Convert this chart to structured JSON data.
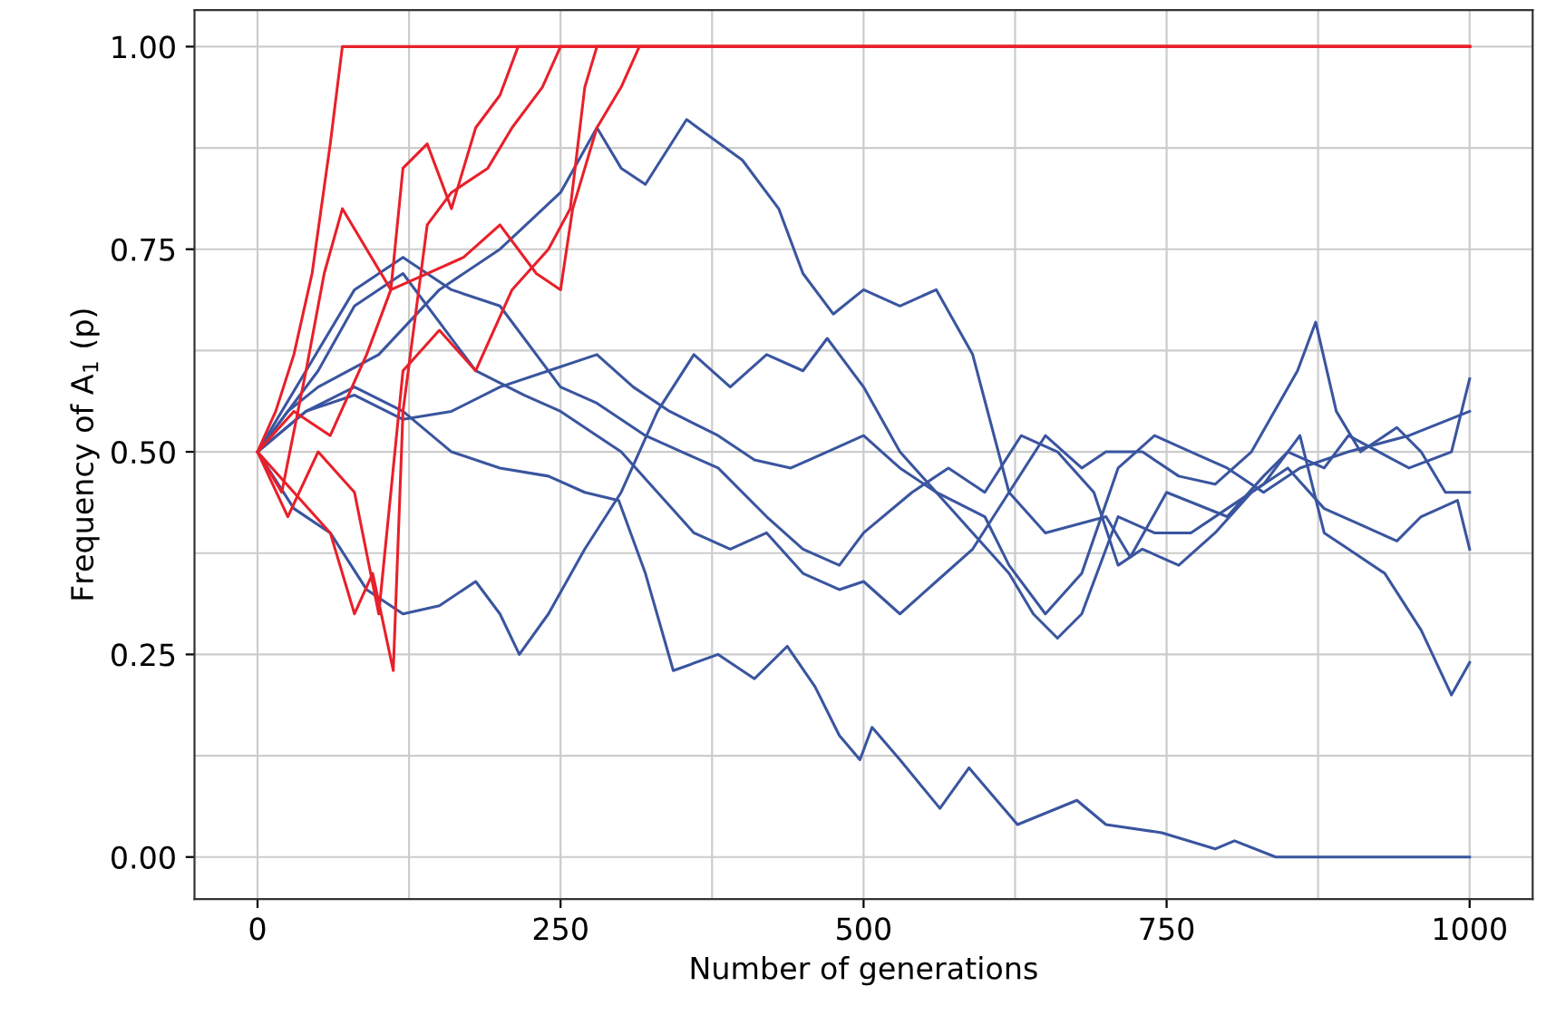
{
  "chart_data": {
    "type": "line",
    "xlabel": "Number of generations",
    "ylabel": "Frequency of A$_{1}$ (p)",
    "xlim": [
      -52,
      1052
    ],
    "ylim": [
      -0.052,
      1.045
    ],
    "xticks": [
      0,
      {
        "value": 125,
        "label": null
      },
      250,
      {
        "value": 375,
        "label": null
      },
      500,
      {
        "value": 625,
        "label": null
      },
      750,
      {
        "value": 875,
        "label": null
      },
      1000
    ],
    "yticks": [
      {
        "value": 0,
        "label": "0.00"
      },
      {
        "value": 0.125,
        "label": null
      },
      {
        "value": 0.25,
        "label": "0.25"
      },
      {
        "value": 0.375,
        "label": null
      },
      {
        "value": 0.5,
        "label": "0.50"
      },
      {
        "value": 0.625,
        "label": null
      },
      {
        "value": 0.75,
        "label": "0.75"
      },
      {
        "value": 0.875,
        "label": null
      },
      {
        "value": 1,
        "label": "1.00"
      }
    ],
    "grid": true,
    "marker": "none",
    "line_style": "solid",
    "series": [
      {
        "color": "#3a559f",
        "x": [
          0,
          25,
          50,
          100,
          150,
          200,
          250,
          280,
          300,
          320,
          354,
          400,
          430,
          450,
          475,
          500,
          530,
          560,
          590,
          620,
          650,
          700,
          720,
          750,
          800,
          830,
          850,
          880,
          900,
          950,
          985,
          1000
        ],
        "values": [
          0.5,
          0.55,
          0.58,
          0.62,
          0.7,
          0.75,
          0.82,
          0.9,
          0.85,
          0.83,
          0.91,
          0.86,
          0.8,
          0.72,
          0.67,
          0.7,
          0.68,
          0.7,
          0.62,
          0.45,
          0.4,
          0.42,
          0.37,
          0.45,
          0.42,
          0.47,
          0.5,
          0.48,
          0.52,
          0.48,
          0.5,
          0.59
        ]
      },
      {
        "color": "#3a559f",
        "x": [
          0,
          40,
          80,
          120,
          160,
          200,
          240,
          270,
          298,
          320,
          343,
          380,
          410,
          437,
          460,
          480,
          497,
          507,
          530,
          563,
          587,
          627,
          676,
          700,
          746,
          790,
          806,
          840,
          1000
        ],
        "values": [
          0.5,
          0.55,
          0.58,
          0.55,
          0.5,
          0.48,
          0.47,
          0.45,
          0.44,
          0.35,
          0.23,
          0.25,
          0.22,
          0.26,
          0.21,
          0.15,
          0.12,
          0.16,
          0.12,
          0.06,
          0.11,
          0.04,
          0.07,
          0.04,
          0.03,
          0.01,
          0.02,
          0.0,
          0.0
        ]
      },
      {
        "color": "#3a559f",
        "x": [
          0,
          30,
          60,
          90,
          120,
          150,
          180,
          200,
          216,
          240,
          270,
          300,
          330,
          360,
          390,
          420,
          450,
          470,
          500,
          530,
          560,
          590,
          620,
          640,
          660,
          680,
          710,
          740,
          770,
          800,
          830,
          860,
          880,
          900,
          930,
          960,
          985,
          1000
        ],
        "values": [
          0.5,
          0.43,
          0.4,
          0.33,
          0.3,
          0.31,
          0.34,
          0.3,
          0.25,
          0.3,
          0.38,
          0.45,
          0.55,
          0.62,
          0.58,
          0.62,
          0.6,
          0.64,
          0.58,
          0.5,
          0.45,
          0.4,
          0.35,
          0.3,
          0.27,
          0.3,
          0.42,
          0.4,
          0.4,
          0.43,
          0.46,
          0.52,
          0.4,
          0.38,
          0.35,
          0.28,
          0.2,
          0.24
        ]
      },
      {
        "color": "#3a559f",
        "x": [
          0,
          50,
          80,
          120,
          150,
          180,
          220,
          250,
          280,
          300,
          330,
          360,
          390,
          420,
          450,
          480,
          500,
          530,
          560,
          590,
          620,
          650,
          680,
          700,
          730,
          760,
          790,
          820,
          858,
          873,
          890,
          910,
          940,
          960,
          980,
          1000
        ],
        "values": [
          0.5,
          0.6,
          0.68,
          0.72,
          0.66,
          0.6,
          0.57,
          0.55,
          0.52,
          0.5,
          0.45,
          0.4,
          0.38,
          0.4,
          0.35,
          0.33,
          0.34,
          0.3,
          0.34,
          0.38,
          0.45,
          0.52,
          0.48,
          0.5,
          0.5,
          0.47,
          0.46,
          0.5,
          0.6,
          0.66,
          0.55,
          0.5,
          0.53,
          0.5,
          0.45,
          0.45
        ]
      },
      {
        "color": "#3a559f",
        "x": [
          0,
          40,
          80,
          120,
          160,
          200,
          250,
          280,
          320,
          350,
          380,
          420,
          450,
          480,
          500,
          540,
          570,
          600,
          630,
          660,
          690,
          710,
          730,
          760,
          790,
          820,
          850,
          880,
          910,
          940,
          960,
          990,
          1000
        ],
        "values": [
          0.5,
          0.6,
          0.7,
          0.74,
          0.7,
          0.68,
          0.58,
          0.56,
          0.52,
          0.5,
          0.48,
          0.42,
          0.38,
          0.36,
          0.4,
          0.45,
          0.48,
          0.45,
          0.52,
          0.5,
          0.45,
          0.36,
          0.38,
          0.36,
          0.4,
          0.45,
          0.48,
          0.43,
          0.41,
          0.39,
          0.42,
          0.44,
          0.38
        ]
      },
      {
        "color": "#3a559f",
        "x": [
          0,
          40,
          80,
          120,
          160,
          200,
          240,
          280,
          310,
          340,
          380,
          410,
          440,
          470,
          500,
          530,
          560,
          600,
          620,
          650,
          680,
          710,
          740,
          770,
          800,
          830,
          860,
          900,
          950,
          1000
        ],
        "values": [
          0.5,
          0.55,
          0.57,
          0.54,
          0.55,
          0.58,
          0.6,
          0.62,
          0.58,
          0.55,
          0.52,
          0.49,
          0.48,
          0.5,
          0.52,
          0.48,
          0.45,
          0.42,
          0.36,
          0.3,
          0.35,
          0.48,
          0.52,
          0.5,
          0.48,
          0.45,
          0.48,
          0.5,
          0.52,
          0.55
        ]
      },
      {
        "color": "#e8202a",
        "x": [
          0,
          15,
          30,
          45,
          60,
          70,
          1000
        ],
        "values": [
          0.5,
          0.55,
          0.62,
          0.72,
          0.88,
          1.0,
          1.0
        ]
      },
      {
        "color": "#e8202a",
        "x": [
          0,
          20,
          40,
          55,
          70,
          90,
          110,
          120,
          140,
          160,
          180,
          200,
          215,
          1000
        ],
        "values": [
          0.5,
          0.45,
          0.6,
          0.72,
          0.8,
          0.75,
          0.7,
          0.85,
          0.88,
          0.8,
          0.9,
          0.94,
          1.0,
          1.0
        ]
      },
      {
        "color": "#e8202a",
        "x": [
          0,
          30,
          60,
          80,
          95,
          112,
          120,
          140,
          160,
          190,
          210,
          235,
          250,
          1000
        ],
        "values": [
          0.5,
          0.45,
          0.4,
          0.3,
          0.35,
          0.23,
          0.55,
          0.78,
          0.82,
          0.85,
          0.9,
          0.95,
          1.0,
          1.0
        ]
      },
      {
        "color": "#e8202a",
        "x": [
          0,
          30,
          60,
          90,
          110,
          140,
          170,
          200,
          230,
          250,
          260,
          280,
          300,
          315,
          1000
        ],
        "values": [
          0.5,
          0.55,
          0.52,
          0.62,
          0.7,
          0.72,
          0.74,
          0.78,
          0.72,
          0.7,
          0.8,
          0.9,
          0.95,
          1.0,
          1.0
        ]
      },
      {
        "color": "#e8202a",
        "x": [
          0,
          25,
          50,
          80,
          100,
          120,
          150,
          180,
          210,
          240,
          258,
          270,
          280,
          1000
        ],
        "values": [
          0.5,
          0.42,
          0.5,
          0.45,
          0.3,
          0.6,
          0.65,
          0.6,
          0.7,
          0.75,
          0.8,
          0.95,
          1.0,
          1.0
        ]
      }
    ]
  }
}
